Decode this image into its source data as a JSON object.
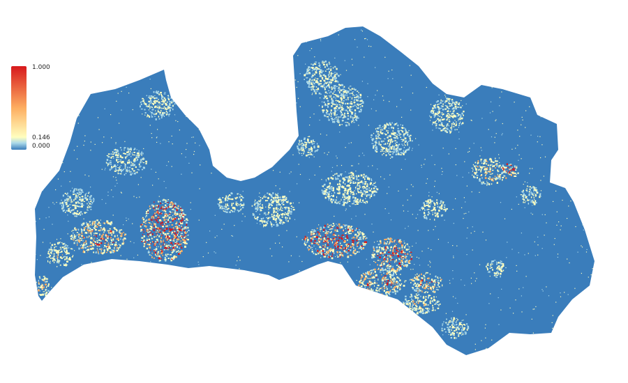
{
  "legend": {
    "max_label": "1.000",
    "mid_label": "0.146",
    "min_label": "0.000",
    "max_value": 1.0,
    "mid_value": 0.146,
    "min_value": 0.0
  },
  "colors": {
    "low": "#3a7dbb",
    "low_mid": "#abd9e9",
    "mid": "#ffffbf",
    "high_mid": "#fdae61",
    "high": "#d7191c",
    "background": "#ffffff"
  }
}
